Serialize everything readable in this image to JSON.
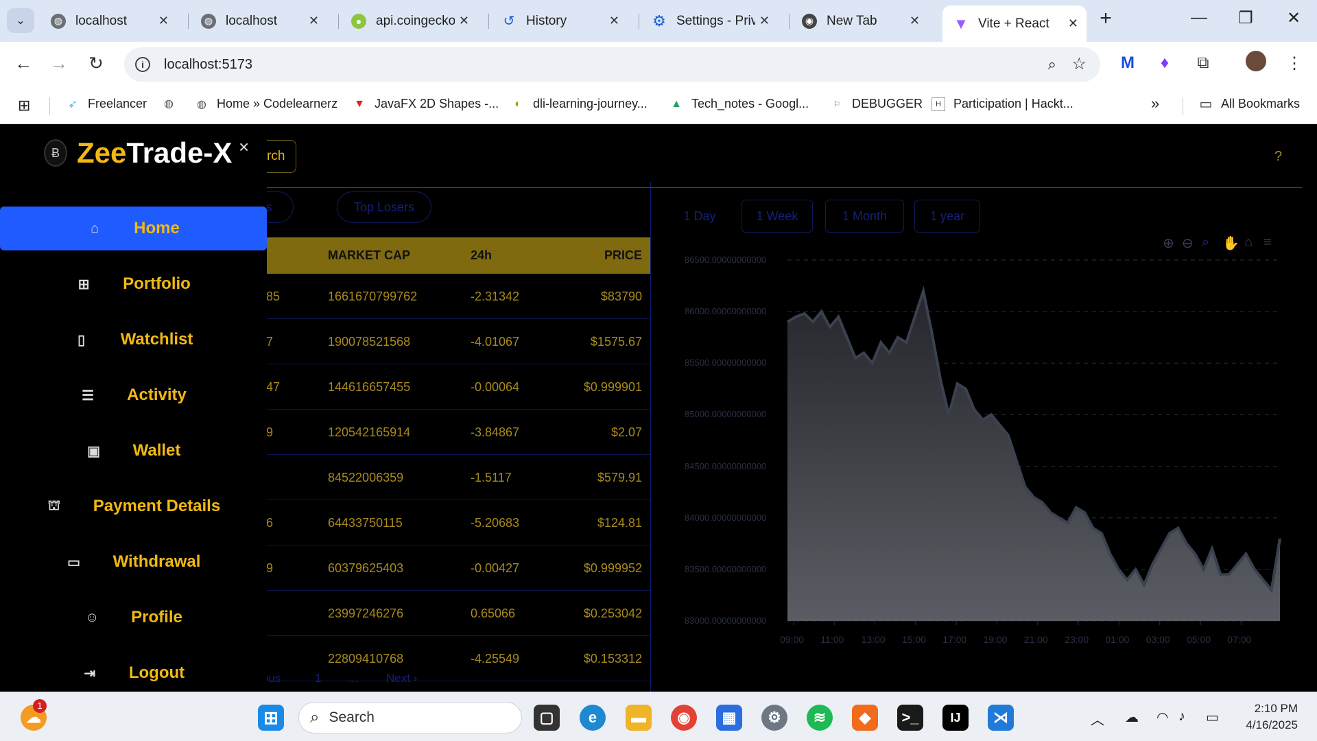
{
  "browser": {
    "tabs": [
      {
        "label": "localhost",
        "icon": "globe-icon",
        "active": false
      },
      {
        "label": "localhost",
        "icon": "globe-icon",
        "active": false
      },
      {
        "label": "api.coingecko",
        "icon": "coingecko-icon",
        "active": false
      },
      {
        "label": "History",
        "icon": "history-icon",
        "active": false
      },
      {
        "label": "Settings - Priv",
        "icon": "gear-icon",
        "active": false
      },
      {
        "label": "New Tab",
        "icon": "chrome-icon",
        "active": false
      },
      {
        "label": "Vite + React",
        "icon": "vite-icon",
        "active": true
      }
    ],
    "url": "localhost:5173",
    "bookmarks": [
      {
        "label": "Freelancer",
        "icon": "freelancer-icon"
      },
      {
        "label": "",
        "icon": "globe-icon"
      },
      {
        "label": "Home » Codelearnerz",
        "icon": "globe-icon"
      },
      {
        "label": "JavaFX 2D Shapes -...",
        "icon": "javafx-icon"
      },
      {
        "label": "dli-learning-journey...",
        "icon": "nvidia-icon"
      },
      {
        "label": "Tech_notes - Googl...",
        "icon": "drive-icon"
      },
      {
        "label": "DEBUGGER",
        "icon": "debugger-icon"
      },
      {
        "label": "Participation | Hackt...",
        "icon": "hackerearth-icon"
      }
    ],
    "all_bookmarks": "All Bookmarks",
    "more": "»"
  },
  "app": {
    "brand_part1": "Zee",
    "brand_part2": "Trade-X",
    "close": "×",
    "search_label": "rch",
    "help": "?",
    "nav": [
      {
        "label": "Home",
        "icon": "home-icon",
        "active": true
      },
      {
        "label": "Portfolio",
        "icon": "grid-icon",
        "active": false
      },
      {
        "label": "Watchlist",
        "icon": "bookmark-icon",
        "active": false
      },
      {
        "label": "Activity",
        "icon": "list-icon",
        "active": false
      },
      {
        "label": "Wallet",
        "icon": "wallet-icon",
        "active": false
      },
      {
        "label": "Payment Details",
        "icon": "bank-icon",
        "active": false
      },
      {
        "label": "Withdrawal",
        "icon": "card-icon",
        "active": false
      },
      {
        "label": "Profile",
        "icon": "user-icon",
        "active": false
      },
      {
        "label": "Logout",
        "icon": "logout-icon",
        "active": false
      }
    ],
    "filters": [
      "ers",
      "Top Losers"
    ],
    "table": {
      "headers": {
        "market_cap": "MARKET CAP",
        "change": "24h",
        "price": "PRICE"
      },
      "rows": [
        {
          "id": "85",
          "market_cap": "1661670799762",
          "change": "-2.31342",
          "price": "$83790"
        },
        {
          "id": "7",
          "market_cap": "190078521568",
          "change": "-4.01067",
          "price": "$1575.67"
        },
        {
          "id": "47",
          "market_cap": "144616657455",
          "change": "-0.00064",
          "price": "$0.999901"
        },
        {
          "id": "9",
          "market_cap": "120542165914",
          "change": "-3.84867",
          "price": "$2.07"
        },
        {
          "id": "",
          "market_cap": "84522006359",
          "change": "-1.5117",
          "price": "$579.91"
        },
        {
          "id": "6",
          "market_cap": "64433750115",
          "change": "-5.20683",
          "price": "$124.81"
        },
        {
          "id": "9",
          "market_cap": "60379625403",
          "change": "-0.00427",
          "price": "$0.999952"
        },
        {
          "id": "",
          "market_cap": "23997246276",
          "change": "0.65066",
          "price": "$0.253042"
        },
        {
          "id": "",
          "market_cap": "22809410768",
          "change": "-4.25549",
          "price": "$0.153312"
        }
      ]
    },
    "pagination": {
      "prev": "ous",
      "page": "1",
      "ellipsis": "...",
      "next": "Next ›"
    },
    "ranges": [
      "1 Day",
      "1 Week",
      "1 Month",
      "1 year"
    ],
    "accent": "#f2b912",
    "active_nav_color": "#1f5bff"
  },
  "chart_data": {
    "type": "area",
    "title": "",
    "xlabel": "",
    "ylabel": "",
    "ylim": [
      83000,
      86500
    ],
    "y_ticks": [
      "83000.00000000000",
      "83500.00000000000",
      "84000.00000000000",
      "84500.00000000000",
      "85000.00000000000",
      "85500.00000000000",
      "86000.00000000000",
      "86500.00000000000"
    ],
    "x_ticks": [
      "09:00",
      "11:00",
      "13:00",
      "15:00",
      "17:00",
      "19:00",
      "21:00",
      "23:00",
      "01:00",
      "03:00",
      "05:00",
      "07:00"
    ],
    "grid": true,
    "series": [
      {
        "values": [
          85900,
          85950,
          85980,
          85900,
          86000,
          85850,
          85950,
          85750,
          85550,
          85600,
          85500,
          85700,
          85600,
          85750,
          85700,
          85950,
          86200,
          85800,
          85350,
          85000,
          85300,
          85250,
          85050,
          84950,
          85000,
          84900,
          84800,
          84550,
          84300,
          84200,
          84150,
          84050,
          84000,
          83950,
          84100,
          84050,
          83900,
          83850,
          83650,
          83500,
          83400,
          83500,
          83350,
          83550,
          83700,
          83850,
          83900,
          83750,
          83650,
          83500,
          83700,
          83450,
          83450,
          83550,
          83650,
          83500,
          83400,
          83300,
          83800
        ]
      }
    ]
  },
  "toolbar_icons": [
    "zoom-in-icon",
    "zoom-out-icon",
    "magnify-icon",
    "pan-icon",
    "reset-home-icon",
    "menu-icon"
  ],
  "taskbar": {
    "search_placeholder": "Search",
    "weather_badge": "1",
    "time": "2:10 PM",
    "date": "4/16/2025"
  }
}
